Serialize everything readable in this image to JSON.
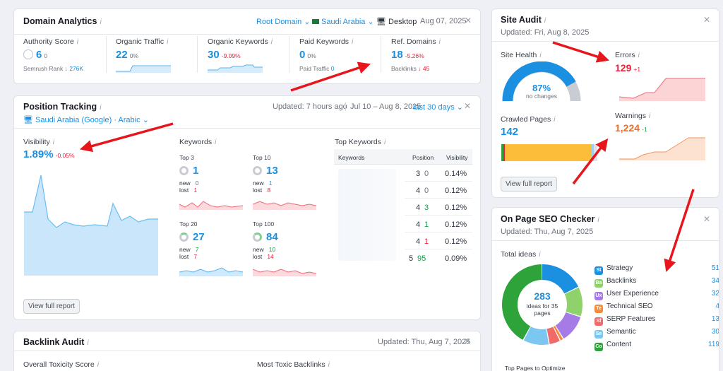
{
  "domain_analytics": {
    "title": "Domain Analytics",
    "root_domain": "Root Domain",
    "country": "Saudi Arabia",
    "device": "Desktop",
    "date": "Aug 07, 2025",
    "metrics": [
      {
        "label": "Authority Score",
        "value": "6",
        "change": "0",
        "sub_label": "Semrush Rank",
        "sub_value": "↓ 276K"
      },
      {
        "label": "Organic Traffic",
        "value": "22",
        "change": "0%"
      },
      {
        "label": "Organic Keywords",
        "value": "30",
        "change": "-9.09%"
      },
      {
        "label": "Paid Keywords",
        "value": "0",
        "change": "0%",
        "sub_label": "Paid Traffic",
        "sub_value": "0"
      },
      {
        "label": "Ref. Domains",
        "value": "18",
        "change": "-5.26%",
        "sub_label": "Backlinks",
        "sub_value": "↓ 45"
      }
    ]
  },
  "position_tracking": {
    "title": "Position Tracking",
    "updated": "Updated: 7 hours ago",
    "range": "Jul 10 – Aug 8, 2025",
    "period": "last 30 days",
    "location": "Saudi Arabia (Google) · Arabic",
    "visibility_label": "Visibility",
    "visibility_value": "1.89%",
    "visibility_change": "-0.05%",
    "keywords_label": "Keywords",
    "groups": [
      {
        "label": "Top 3",
        "value": "1",
        "new": "0",
        "lost": "1"
      },
      {
        "label": "Top 10",
        "value": "13",
        "new": "1",
        "lost": "8"
      },
      {
        "label": "Top 20",
        "value": "27",
        "new": "7",
        "lost": "7"
      },
      {
        "label": "Top 100",
        "value": "84",
        "new": "10",
        "lost": "14"
      }
    ],
    "new_label": "new",
    "lost_label": "lost",
    "top_keywords_label": "Top Keywords",
    "columns": [
      "Keywords",
      "Position",
      "Visibility"
    ],
    "rows": [
      {
        "pos": "3",
        "chg": "0",
        "vis": "0.14%"
      },
      {
        "pos": "4",
        "chg": "0",
        "vis": "0.12%"
      },
      {
        "pos": "4",
        "chg": "3",
        "vis": "0.12%"
      },
      {
        "pos": "4",
        "chg": "1",
        "vis": "0.12%"
      },
      {
        "pos": "4",
        "chg": "1",
        "vis": "0.12%"
      },
      {
        "pos": "5",
        "chg": "95",
        "vis": "0.09%"
      }
    ],
    "view_full_report": "View full report"
  },
  "backlink_audit": {
    "title": "Backlink Audit",
    "updated": "Updated: Thu, Aug 7, 2025",
    "overall": "Overall Toxicity Score",
    "toxic": "Most Toxic Backlinks"
  },
  "site_audit": {
    "title": "Site Audit",
    "updated": "Updated: Fri, Aug 8, 2025",
    "health_label": "Site Health",
    "health_value": "87%",
    "health_sub": "no changes",
    "health_fraction": 0.87,
    "errors_label": "Errors",
    "errors_value": "129",
    "errors_change": "+1",
    "crawled_label": "Crawled Pages",
    "crawled_value": "142",
    "warnings_label": "Warnings",
    "warnings_value": "1,224",
    "warnings_change": "-1",
    "view_full_report": "View full report"
  },
  "seo_checker": {
    "title": "On Page SEO Checker",
    "updated": "Updated: Thu, Aug 7, 2025",
    "total_label": "Total ideas",
    "total_value": "283",
    "total_sub": "ideas for 35 pages",
    "footer": "Top Pages to Optimize",
    "ideas": [
      {
        "abbr": "St",
        "name": "Strategy",
        "value": 51,
        "color": "#1b8fe0"
      },
      {
        "abbr": "Ba",
        "name": "Backlinks",
        "value": 34,
        "color": "#8fd16a"
      },
      {
        "abbr": "Ux",
        "name": "User Experience",
        "value": 32,
        "color": "#a77be6"
      },
      {
        "abbr": "Te",
        "name": "Technical SEO",
        "value": 4,
        "color": "#f58a3c"
      },
      {
        "abbr": "Sf",
        "name": "SERP Features",
        "value": 13,
        "color": "#f06a6a"
      },
      {
        "abbr": "Se",
        "name": "Semantic",
        "value": 30,
        "color": "#7cc6f2"
      },
      {
        "abbr": "Co",
        "name": "Content",
        "value": 119,
        "color": "#2ea33a"
      }
    ]
  },
  "colors": {
    "accent": "#1b8fe0",
    "error": "#e5243b",
    "positive": "#13a04a",
    "warning": "#f26b22",
    "annotation_arrow": "#e6161c"
  }
}
